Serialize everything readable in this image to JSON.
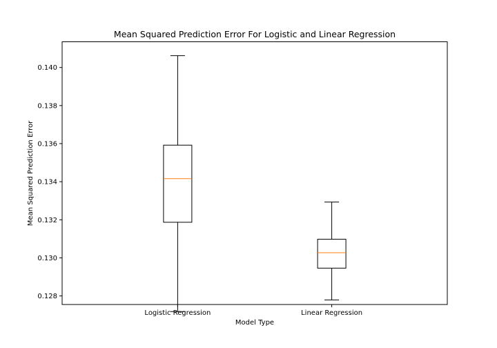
{
  "chart_data": {
    "type": "box",
    "title": "Mean Squared Prediction Error For Logistic and Linear Regression",
    "xlabel": "Model Type",
    "ylabel": "Mean Squared Prediction Error",
    "ylim": [
      0.12755,
      0.14135
    ],
    "yticks": [
      0.128,
      0.13,
      0.132,
      0.134,
      0.136,
      0.138,
      0.14
    ],
    "ytick_labels": [
      "0.128",
      "0.130",
      "0.132",
      "0.134",
      "0.136",
      "0.138",
      "0.140"
    ],
    "categories": [
      "Logistic Regression",
      "Linear Regression"
    ],
    "boxes": [
      {
        "category": "Logistic Regression",
        "whisker_low": 0.12718,
        "q1": 0.13187,
        "median": 0.13416,
        "q3": 0.13592,
        "whisker_high": 0.14062
      },
      {
        "category": "Linear Regression",
        "whisker_low": 0.12779,
        "q1": 0.12946,
        "median": 0.13027,
        "q3": 0.13098,
        "whisker_high": 0.13293
      }
    ],
    "median_color": "#ff7f0e",
    "box_color": "#000000",
    "grid": false,
    "legend": "none"
  }
}
